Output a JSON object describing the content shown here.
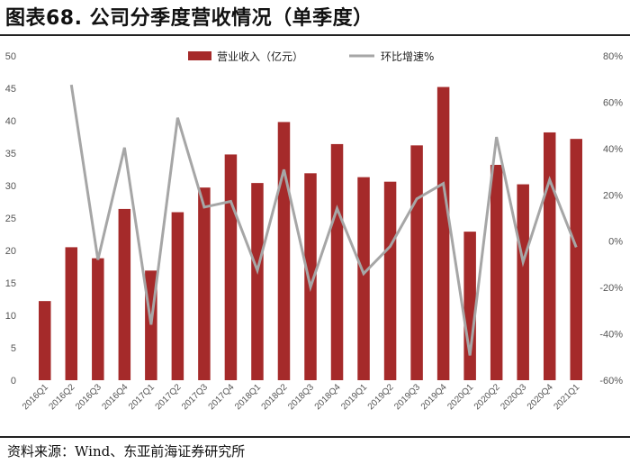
{
  "title": "图表68. 公司分季度营收情况（单季度）",
  "source": "资料来源：Wind、东亚前海证券研究所",
  "colors": {
    "bar": "#a52a2a",
    "line": "#a6a6a6"
  },
  "chart_data": {
    "type": "bar",
    "categories": [
      "2016Q1",
      "2016Q2",
      "2016Q3",
      "2016Q4",
      "2017Q1",
      "2017Q2",
      "2017Q3",
      "2017Q4",
      "2018Q1",
      "2018Q2",
      "2018Q3",
      "2018Q4",
      "2019Q1",
      "2019Q2",
      "2019Q3",
      "2019Q4",
      "2020Q1",
      "2020Q2",
      "2020Q3",
      "2020Q4",
      "2021Q1"
    ],
    "series": [
      {
        "name": "营业收入（亿元）",
        "type": "bar",
        "axis": "left",
        "values": [
          12.2,
          20.5,
          18.8,
          26.4,
          16.9,
          25.9,
          29.7,
          34.8,
          30.4,
          39.8,
          31.9,
          36.4,
          31.3,
          30.6,
          36.2,
          45.2,
          22.9,
          33.2,
          30.2,
          38.2,
          37.2
        ]
      },
      {
        "name": "环比增速%",
        "type": "line",
        "axis": "right",
        "values": [
          null,
          67.5,
          -8.0,
          40.4,
          -36.0,
          53.3,
          14.7,
          17.2,
          -12.6,
          30.9,
          -19.8,
          14.1,
          -14.0,
          -2.2,
          18.3,
          24.9,
          -49.3,
          45.0,
          -9.0,
          26.5,
          -2.6
        ]
      }
    ],
    "y_left": {
      "ylim": [
        0,
        50
      ],
      "ticks": [
        "0",
        "5",
        "10",
        "15",
        "20",
        "25",
        "30",
        "35",
        "40",
        "45",
        "50"
      ]
    },
    "y_right": {
      "ylim": [
        -60,
        80
      ],
      "ticks": [
        "-60%",
        "-40%",
        "-20%",
        "0%",
        "20%",
        "40%",
        "60%",
        "80%"
      ]
    },
    "legend_position": "top-center",
    "grid": false
  }
}
